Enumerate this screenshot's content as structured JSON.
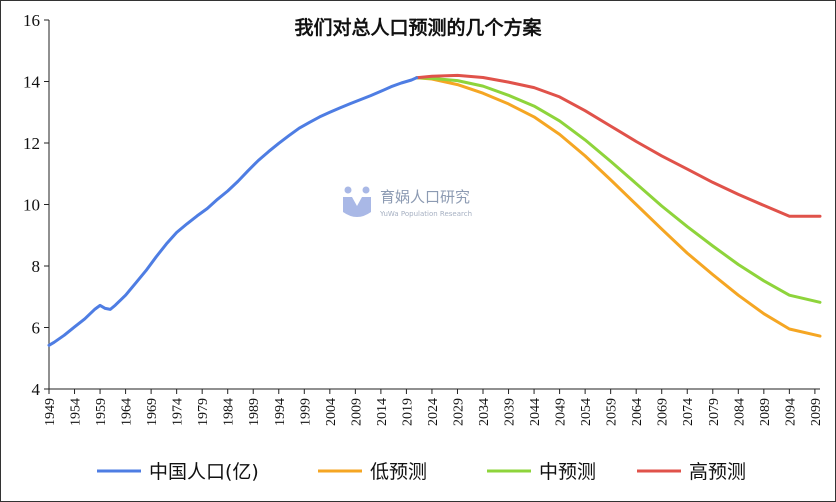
{
  "chart_data": {
    "type": "line",
    "title": "我们对总人口预测的几个方案",
    "xlabel": "",
    "ylabel": "",
    "xlim": [
      1949,
      2100
    ],
    "ylim": [
      4,
      16
    ],
    "y_ticks": [
      4,
      6,
      8,
      10,
      12,
      14,
      16
    ],
    "x_ticks": [
      1949,
      1954,
      1959,
      1964,
      1969,
      1974,
      1979,
      1984,
      1989,
      1994,
      1999,
      2004,
      2009,
      2014,
      2019,
      2024,
      2029,
      2034,
      2039,
      2044,
      2049,
      2054,
      2059,
      2064,
      2069,
      2074,
      2079,
      2084,
      2089,
      2094,
      2099
    ],
    "grid": false,
    "legend_position": "bottom",
    "series": [
      {
        "name": "中国人口(亿)",
        "color": "#4e7de3",
        "x": [
          1949,
          1950,
          1952,
          1954,
          1956,
          1958,
          1959,
          1960,
          1961,
          1962,
          1964,
          1966,
          1968,
          1970,
          1972,
          1974,
          1976,
          1978,
          1980,
          1982,
          1984,
          1986,
          1988,
          1990,
          1992,
          1994,
          1996,
          1998,
          2000,
          2002,
          2004,
          2006,
          2008,
          2010,
          2012,
          2014,
          2016,
          2018,
          2019,
          2020,
          2021
        ],
        "values": [
          5.42,
          5.52,
          5.75,
          6.02,
          6.28,
          6.6,
          6.72,
          6.62,
          6.59,
          6.73,
          7.05,
          7.45,
          7.85,
          8.3,
          8.72,
          9.09,
          9.37,
          9.63,
          9.87,
          10.17,
          10.44,
          10.75,
          11.1,
          11.43,
          11.72,
          11.99,
          12.24,
          12.48,
          12.67,
          12.85,
          13.0,
          13.14,
          13.28,
          13.41,
          13.54,
          13.68,
          13.83,
          13.95,
          14.0,
          14.05,
          14.12
        ]
      },
      {
        "name": "低预测",
        "color": "#f5a623",
        "x": [
          2021,
          2024,
          2029,
          2034,
          2039,
          2044,
          2049,
          2054,
          2059,
          2064,
          2069,
          2074,
          2079,
          2084,
          2089,
          2094,
          2100
        ],
        "values": [
          14.12,
          14.08,
          13.9,
          13.62,
          13.27,
          12.85,
          12.28,
          11.58,
          10.8,
          10.0,
          9.2,
          8.42,
          7.72,
          7.05,
          6.45,
          5.95,
          5.72
        ]
      },
      {
        "name": "中预测",
        "color": "#8ed43b",
        "x": [
          2021,
          2024,
          2029,
          2034,
          2039,
          2044,
          2049,
          2054,
          2059,
          2064,
          2069,
          2074,
          2079,
          2084,
          2089,
          2094,
          2100
        ],
        "values": [
          14.12,
          14.1,
          14.03,
          13.85,
          13.55,
          13.2,
          12.72,
          12.1,
          11.4,
          10.68,
          9.95,
          9.28,
          8.65,
          8.05,
          7.52,
          7.05,
          6.82
        ]
      },
      {
        "name": "高预测",
        "color": "#e0524a",
        "x": [
          2021,
          2024,
          2029,
          2034,
          2039,
          2044,
          2049,
          2054,
          2059,
          2064,
          2069,
          2074,
          2079,
          2084,
          2089,
          2094,
          2100
        ],
        "values": [
          14.12,
          14.17,
          14.2,
          14.13,
          13.98,
          13.8,
          13.5,
          13.05,
          12.55,
          12.05,
          11.58,
          11.15,
          10.72,
          10.33,
          9.97,
          9.62,
          9.62
        ]
      }
    ]
  },
  "watermark": {
    "title": "育娲人口研究",
    "subtitle": "YuWa Population Research",
    "logo_icon": "yuwa-logo-icon"
  }
}
